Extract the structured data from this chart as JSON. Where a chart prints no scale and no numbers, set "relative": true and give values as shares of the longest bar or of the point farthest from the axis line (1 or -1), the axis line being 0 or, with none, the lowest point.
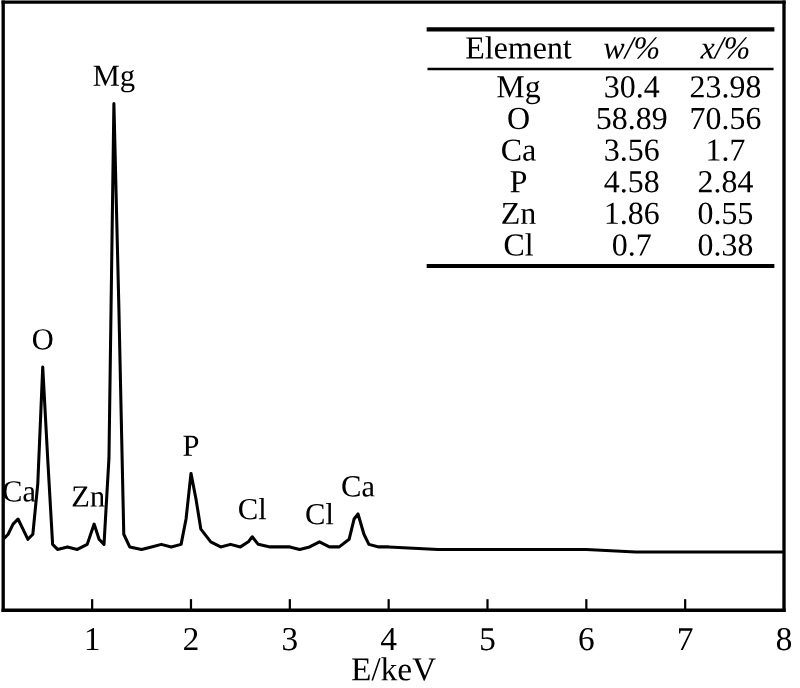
{
  "chart_data": {
    "type": "line",
    "relative": true,
    "xlabel": "E/keV",
    "xlim": [
      0.1,
      8
    ],
    "xticks": [
      1,
      2,
      3,
      4,
      5,
      6,
      7,
      8
    ],
    "grid": false,
    "legend": false,
    "marker": "none",
    "line_style": "solid",
    "series": [
      {
        "color": "#000000",
        "x": [
          0.1,
          0.15,
          0.2,
          0.25,
          0.3,
          0.35,
          0.4,
          0.45,
          0.5,
          0.55,
          0.6,
          0.65,
          0.75,
          0.85,
          0.95,
          1.02,
          1.07,
          1.12,
          1.17,
          1.22,
          1.27,
          1.32,
          1.38,
          1.5,
          1.6,
          1.7,
          1.8,
          1.9,
          1.95,
          2.0,
          2.05,
          2.1,
          2.2,
          2.3,
          2.4,
          2.5,
          2.58,
          2.62,
          2.68,
          2.8,
          2.9,
          3.0,
          3.1,
          3.2,
          3.3,
          3.4,
          3.5,
          3.6,
          3.65,
          3.69,
          3.75,
          3.8,
          3.9,
          4.0,
          4.5,
          5.0,
          5.5,
          6.0,
          6.5,
          7.0,
          7.5,
          8.0
        ],
        "values": [
          0.14,
          0.15,
          0.17,
          0.18,
          0.16,
          0.14,
          0.15,
          0.25,
          0.48,
          0.3,
          0.13,
          0.12,
          0.125,
          0.12,
          0.13,
          0.17,
          0.14,
          0.13,
          0.3,
          1.0,
          0.6,
          0.15,
          0.125,
          0.12,
          0.125,
          0.13,
          0.125,
          0.13,
          0.18,
          0.27,
          0.22,
          0.16,
          0.135,
          0.125,
          0.13,
          0.125,
          0.135,
          0.145,
          0.13,
          0.125,
          0.125,
          0.125,
          0.12,
          0.125,
          0.135,
          0.125,
          0.125,
          0.14,
          0.18,
          0.19,
          0.15,
          0.13,
          0.125,
          0.125,
          0.12,
          0.12,
          0.12,
          0.12,
          0.115,
          0.115,
          0.115,
          0.115
        ]
      }
    ],
    "annotations": [
      {
        "text": "Mg",
        "x": 1.22,
        "y": 1.0
      },
      {
        "text": "O",
        "x": 0.5,
        "y": 0.48
      },
      {
        "text": "Ca",
        "x": 0.26,
        "y": 0.18
      },
      {
        "text": "Zn",
        "x": 0.96,
        "y": 0.17
      },
      {
        "text": "P",
        "x": 2.0,
        "y": 0.27
      },
      {
        "text": "Cl",
        "x": 2.62,
        "y": 0.145
      },
      {
        "text": "Cl",
        "x": 3.3,
        "y": 0.135
      },
      {
        "text": "Ca",
        "x": 3.69,
        "y": 0.19
      },
      "Element",
      "w/%",
      "x/%",
      "Mg",
      "30.4",
      "23.98",
      "O",
      "58.89",
      "70.56",
      "Ca",
      "3.56",
      "1.7",
      "P",
      "4.58",
      "2.84",
      "Zn",
      "1.86",
      "0.55",
      "Cl",
      "0.7",
      "0.38"
    ]
  }
}
